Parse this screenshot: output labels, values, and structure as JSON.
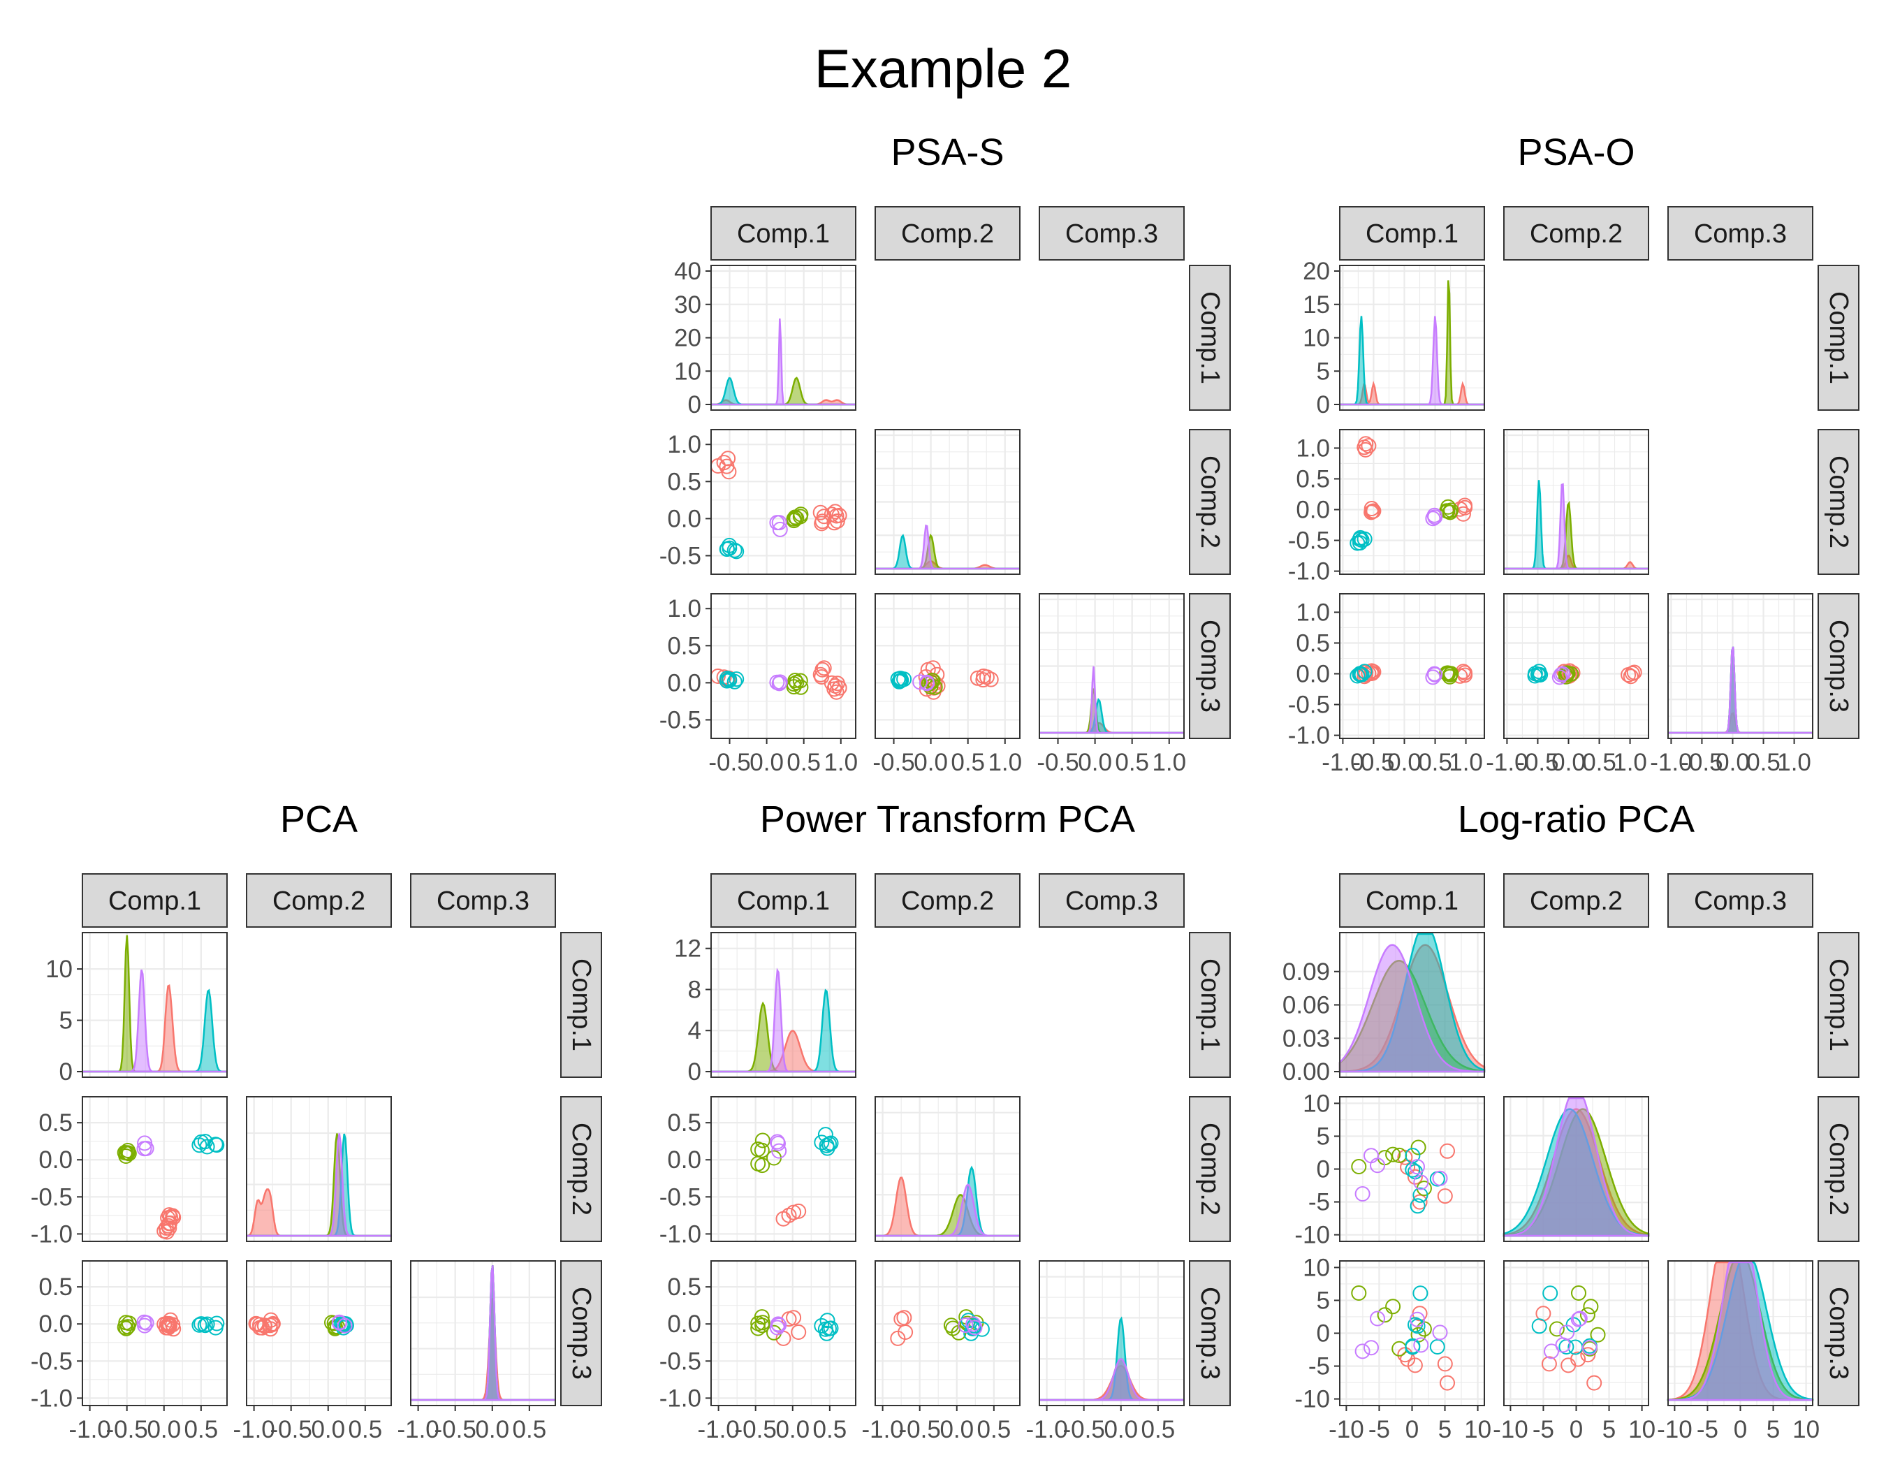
{
  "title": "Example 2",
  "component_labels": [
    "Comp.1",
    "Comp.2",
    "Comp.3"
  ],
  "colors": [
    "#F8766D",
    "#7CAE00",
    "#00BFC4",
    "#C77CFF"
  ],
  "chart_data": [
    {
      "type": "scatter",
      "title": "PSA-S",
      "grid": true,
      "density_ylim": [
        0,
        40
      ],
      "density_ticks": [
        0,
        10,
        20,
        30,
        40
      ],
      "density_tick_labels": [
        "0",
        "10",
        "20",
        "30",
        "40"
      ],
      "axes": [
        {
          "lim": [
            -0.75,
            1.2
          ],
          "ticks": [
            -0.5,
            0,
            0.5,
            1.0
          ],
          "tick_labels": [
            "-0.5",
            "0.0",
            "0.5",
            "1.0"
          ]
        },
        {
          "lim": [
            -0.75,
            1.2
          ],
          "ticks": [
            -0.5,
            0,
            0.5,
            1.0
          ],
          "tick_labels": [
            "-0.5",
            "0.0",
            "0.5",
            "1.0"
          ]
        },
        {
          "lim": [
            -0.75,
            1.2
          ],
          "ticks": [
            -0.5,
            0,
            0.5,
            1.0
          ],
          "tick_labels": [
            "-0.5",
            "0.0",
            "0.5",
            "1.0"
          ]
        }
      ],
      "groups": [
        {
          "c": [
            [
              -0.55,
              0.73,
              0.05
            ],
            [
              0.8,
              0.0,
              0.1
            ],
            [
              0.95,
              0.0,
              0.0
            ]
          ],
          "s": [
            0.05,
            0.06,
            0.05
          ],
          "n": 5,
          "w": [
            0.5,
            0.5,
            0.5
          ]
        },
        {
          "c": [
            [
              0.4,
              0.0,
              -0.02
            ]
          ],
          "s": [
            0.05,
            0.04,
            0.03
          ],
          "n": 6,
          "w": [
            1.0,
            1.0,
            1.0
          ]
        },
        {
          "c": [
            [
              -0.5,
              -0.38,
              0.05
            ]
          ],
          "s": [
            0.05,
            0.04,
            0.04
          ],
          "n": 6,
          "w": [
            1.0,
            1.0,
            1.0
          ]
        },
        {
          "c": [
            [
              0.18,
              -0.06,
              -0.02
            ]
          ],
          "s": [
            0.015,
            0.03,
            0.02
          ],
          "n": 3,
          "w": [
            1.0,
            1.0,
            1.0
          ]
        }
      ]
    },
    {
      "type": "scatter",
      "title": "PSA-O",
      "grid": true,
      "density_ylim": [
        0,
        20
      ],
      "density_ticks": [
        0,
        5,
        10,
        15,
        20
      ],
      "density_tick_labels": [
        "0",
        "5",
        "10",
        "15",
        "20"
      ],
      "axes": [
        {
          "lim": [
            -1.05,
            1.3
          ],
          "ticks": [
            -1.0,
            -0.5,
            0,
            0.5,
            1.0
          ],
          "tick_labels": [
            "-1.0",
            "-0.5",
            "0.0",
            "0.5",
            "1.0"
          ]
        },
        {
          "lim": [
            -1.05,
            1.3
          ],
          "ticks": [
            -1.0,
            -0.5,
            0,
            0.5,
            1.0
          ],
          "tick_labels": [
            "-1.0",
            "-0.5",
            "0.0",
            "0.5",
            "1.0"
          ]
        },
        {
          "lim": [
            -1.05,
            1.3
          ],
          "ticks": [
            -1.0,
            -0.5,
            0,
            0.5,
            1.0
          ],
          "tick_labels": [
            "-1.0",
            "-0.5",
            "0.0",
            "0.5",
            "1.0"
          ]
        }
      ],
      "groups": [
        {
          "c": [
            [
              -0.65,
              1.0,
              0.0
            ],
            [
              -0.5,
              0.0,
              0.0
            ],
            [
              0.95,
              0.0,
              0.0
            ]
          ],
          "s": [
            0.03,
            0.04,
            0.04
          ],
          "n": 4,
          "w": [
            0.7,
            0.3,
            0.3
          ]
        },
        {
          "c": [
            [
              0.72,
              0.0,
              0.0
            ]
          ],
          "s": [
            0.02,
            0.04,
            0.03
          ],
          "n": 6,
          "w": [
            1.0,
            1.0,
            1.0
          ]
        },
        {
          "c": [
            [
              -0.7,
              -0.48,
              0.0
            ]
          ],
          "s": [
            0.03,
            0.03,
            0.03
          ],
          "n": 6,
          "w": [
            1.0,
            1.0,
            1.0
          ]
        },
        {
          "c": [
            [
              0.5,
              -0.1,
              0.0
            ]
          ],
          "s": [
            0.03,
            0.03,
            0.03
          ],
          "n": 3,
          "w": [
            1.0,
            1.0,
            1.0
          ]
        }
      ]
    },
    {
      "type": "scatter",
      "title": "PCA",
      "grid": true,
      "density_ylim": [
        0,
        13
      ],
      "density_ticks": [
        0,
        5,
        10
      ],
      "density_tick_labels": [
        "0",
        "5",
        "10"
      ],
      "axes": [
        {
          "lim": [
            -1.1,
            0.85
          ],
          "ticks": [
            -1.0,
            -0.5,
            0,
            0.5
          ],
          "tick_labels": [
            "-1.0",
            "-0.5",
            "0.0",
            "0.5"
          ]
        },
        {
          "lim": [
            -1.1,
            0.85
          ],
          "ticks": [
            -1.0,
            -0.5,
            0,
            0.5
          ],
          "tick_labels": [
            "-1.0",
            "-0.5",
            "0.0",
            "0.5"
          ]
        },
        {
          "lim": [
            -1.1,
            0.85
          ],
          "ticks": [
            -1.0,
            -0.5,
            0,
            0.5
          ],
          "tick_labels": [
            "-1.0",
            "-0.5",
            "0.0",
            "0.5"
          ]
        }
      ],
      "groups": [
        {
          "c": [
            [
              0.05,
              -0.85,
              0.0
            ],
            [
              0.1,
              -0.78,
              0.0
            ],
            [
              0.05,
              -0.95,
              0.0
            ]
          ],
          "s": [
            0.04,
            0.04,
            0.04
          ],
          "n": 4,
          "w": [
            1.0,
            1.0,
            1.0
          ]
        },
        {
          "c": [
            [
              -0.5,
              0.12,
              0.0
            ]
          ],
          "s": [
            0.03,
            0.04,
            0.03
          ],
          "n": 6,
          "w": [
            1.0,
            1.0,
            1.0
          ]
        },
        {
          "c": [
            [
              0.6,
              0.22,
              0.0
            ]
          ],
          "s": [
            0.05,
            0.04,
            0.03
          ],
          "n": 6,
          "w": [
            1.0,
            1.0,
            1.0
          ]
        },
        {
          "c": [
            [
              -0.3,
              0.15,
              0.0
            ]
          ],
          "s": [
            0.04,
            0.04,
            0.03
          ],
          "n": 3,
          "w": [
            1.0,
            1.0,
            1.0
          ]
        }
      ]
    },
    {
      "type": "scatter",
      "title": "Power Transform PCA",
      "grid": true,
      "density_ylim": [
        0,
        13
      ],
      "density_ticks": [
        0,
        4,
        8,
        12
      ],
      "density_tick_labels": [
        "0",
        "4",
        "8",
        "12"
      ],
      "axes": [
        {
          "lim": [
            -1.1,
            0.85
          ],
          "ticks": [
            -1.0,
            -0.5,
            0,
            0.5
          ],
          "tick_labels": [
            "-1.0",
            "-0.5",
            "0.0",
            "0.5"
          ]
        },
        {
          "lim": [
            -1.1,
            0.85
          ],
          "ticks": [
            -1.0,
            -0.5,
            0,
            0.5
          ],
          "tick_labels": [
            "-1.0",
            "-0.5",
            "0.0",
            "0.5"
          ]
        },
        {
          "lim": [
            -1.1,
            0.85
          ],
          "ticks": [
            -1.0,
            -0.5,
            0,
            0.5
          ],
          "tick_labels": [
            "-1.0",
            "-0.5",
            "0.0",
            "0.5"
          ]
        }
      ],
      "groups": [
        {
          "c": [
            [
              0.0,
              -0.75,
              0.0
            ]
          ],
          "s": [
            0.1,
            0.07,
            0.12
          ],
          "n": 4,
          "w": [
            1.0,
            1.0,
            1.0
          ]
        },
        {
          "c": [
            [
              -0.4,
              0.05,
              0.0
            ]
          ],
          "s": [
            0.06,
            0.1,
            0.1
          ],
          "n": 6,
          "w": [
            1.0,
            1.0,
            1.0
          ]
        },
        {
          "c": [
            [
              0.45,
              0.2,
              0.0
            ]
          ],
          "s": [
            0.05,
            0.06,
            0.05
          ],
          "n": 6,
          "w": [
            1.0,
            1.0,
            1.0
          ]
        },
        {
          "c": [
            [
              -0.2,
              0.15,
              0.0
            ]
          ],
          "s": [
            0.04,
            0.08,
            0.1
          ],
          "n": 3,
          "w": [
            1.0,
            1.0,
            1.0
          ]
        }
      ]
    },
    {
      "type": "scatter",
      "title": "Log-ratio PCA",
      "grid": true,
      "density_ylim": [
        0,
        0.12
      ],
      "density_ticks": [
        0,
        0.03,
        0.06,
        0.09
      ],
      "density_tick_labels": [
        "0.00",
        "0.03",
        "0.06",
        "0.09"
      ],
      "axes": [
        {
          "lim": [
            -11,
            11
          ],
          "ticks": [
            -10,
            -5,
            0,
            5,
            10
          ],
          "tick_labels": [
            "-10",
            "-5",
            "0",
            "5",
            "10"
          ]
        },
        {
          "lim": [
            -11,
            11
          ],
          "ticks": [
            -10,
            -5,
            0,
            5,
            10
          ],
          "tick_labels": [
            "-10",
            "-5",
            "0",
            "5",
            "10"
          ]
        },
        {
          "lim": [
            -11,
            11
          ],
          "ticks": [
            -10,
            -5,
            0,
            5,
            10
          ],
          "tick_labels": [
            "-10",
            "-5",
            "0",
            "5",
            "10"
          ]
        }
      ],
      "groups": [
        {
          "c": [
            [
              2,
              0,
              -2
            ]
          ],
          "s": [
            3.5,
            3.5,
            2.5
          ],
          "n": 6,
          "w": [
            1.0,
            1.0,
            1.0
          ]
        },
        {
          "c": [
            [
              -2,
              1,
              0
            ]
          ],
          "s": [
            4,
            3.5,
            3
          ],
          "n": 6,
          "w": [
            1.0,
            1.0,
            1.0
          ]
        },
        {
          "c": [
            [
              2,
              -1,
              1
            ]
          ],
          "s": [
            3,
            3.5,
            3
          ],
          "n": 6,
          "w": [
            1.0,
            1.0,
            1.0
          ]
        },
        {
          "c": [
            [
              -3,
              0,
              0
            ]
          ],
          "s": [
            3.5,
            3,
            2.5
          ],
          "n": 6,
          "w": [
            1.0,
            1.0,
            1.0
          ]
        }
      ]
    }
  ]
}
